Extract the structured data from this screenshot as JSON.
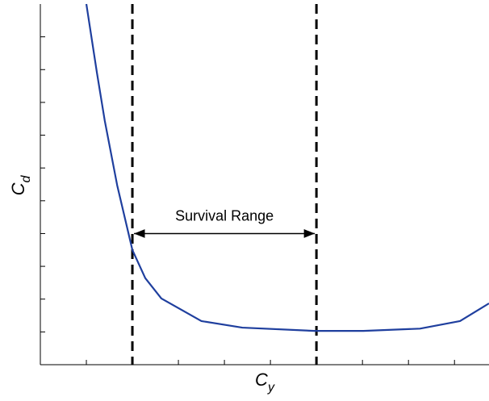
{
  "chart_data": {
    "type": "line",
    "xlabel": {
      "base": "C",
      "sub": "y"
    },
    "ylabel": {
      "base": "C",
      "sub": "d"
    },
    "x": [
      1,
      1.23,
      1.4,
      1.67,
      2,
      2.28,
      2.63,
      3.5,
      4.39,
      5.96,
      7.02,
      8.25,
      9.12,
      9.75
    ],
    "series": [
      {
        "name": "Cd",
        "color": "#1f3f9e",
        "values": [
          11,
          8.9,
          7.44,
          5.47,
          3.5,
          2.64,
          2.02,
          1.33,
          1.13,
          1.03,
          1.03,
          1.1,
          1.33,
          1.87
        ]
      }
    ],
    "xlim": [
      0,
      9.75
    ],
    "ylim": [
      0,
      11
    ],
    "xticks": [
      1,
      2,
      3,
      4,
      5,
      6,
      7,
      8,
      9
    ],
    "yticks": [
      1,
      2,
      3,
      4,
      5,
      6,
      7,
      8,
      9,
      10
    ],
    "vlines": [
      2,
      6
    ],
    "annotations": [
      {
        "text": "Survival Range",
        "x": [
          2,
          6
        ],
        "y": 4
      }
    ]
  }
}
